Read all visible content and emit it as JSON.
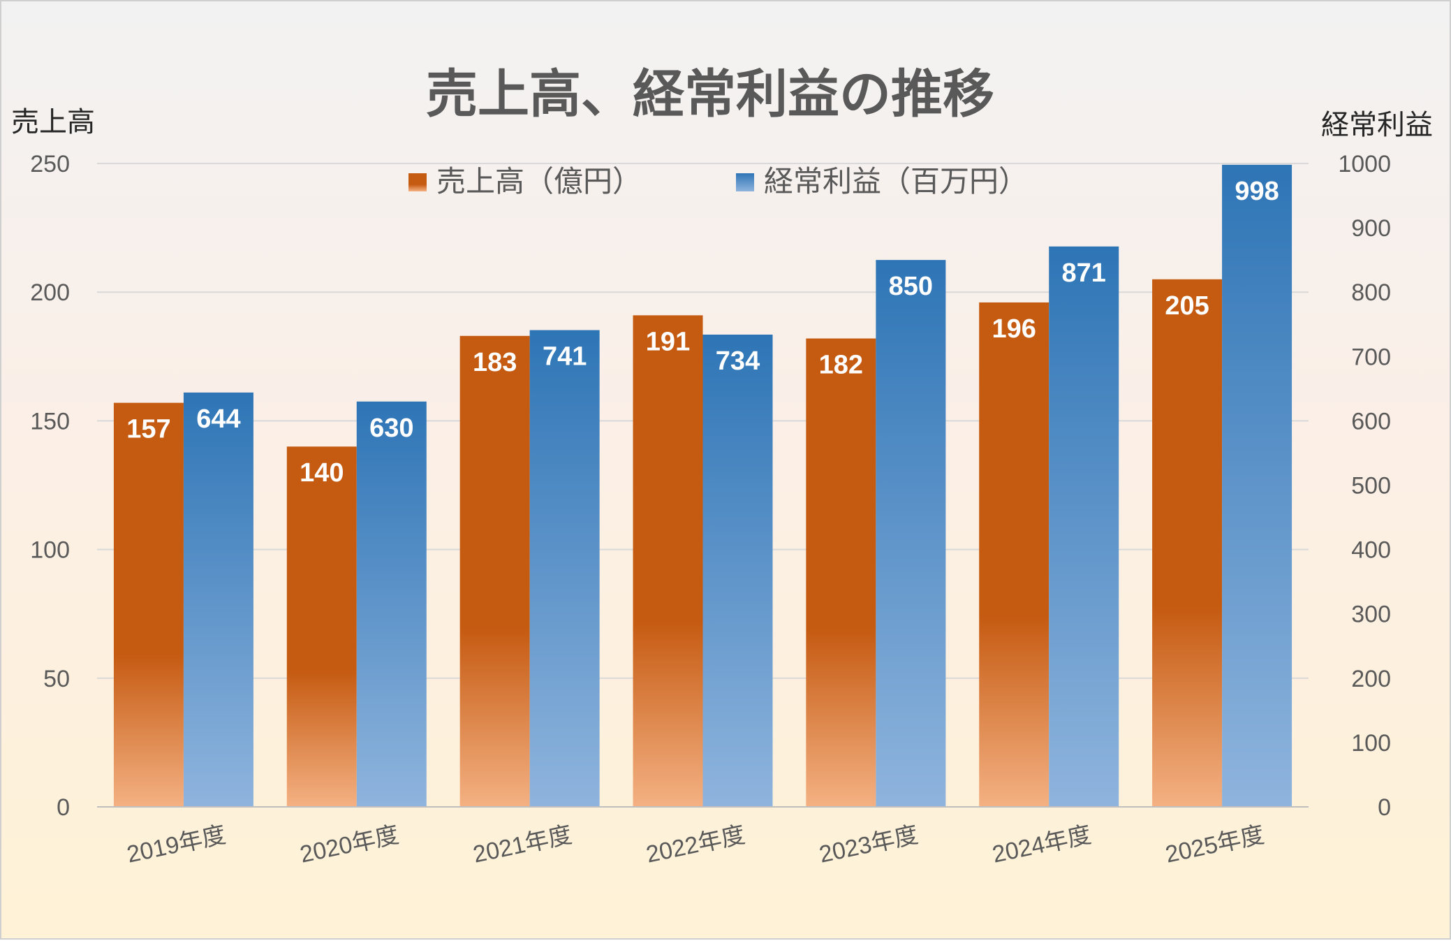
{
  "chart_data": {
    "type": "bar",
    "title": "売上高、経常利益の推移",
    "categories": [
      "2019年度",
      "2020年度",
      "2021年度",
      "2022年度",
      "2023年度",
      "2024年度",
      "2025年度"
    ],
    "series": [
      {
        "name": "売上高（億円）",
        "axis": "left",
        "color": "#c55a11",
        "values": [
          157,
          140,
          183,
          191,
          182,
          196,
          205
        ]
      },
      {
        "name": "経常利益（百万円）",
        "axis": "right",
        "color": "#2e75b6",
        "values": [
          644,
          630,
          741,
          734,
          850,
          871,
          998
        ]
      }
    ],
    "y_left": {
      "label": "売上高",
      "min": 0,
      "max": 250,
      "step": 50
    },
    "y_right": {
      "label": "経常利益",
      "min": 0,
      "max": 1000,
      "step": 100
    },
    "grid": true,
    "legend_position": "top"
  }
}
